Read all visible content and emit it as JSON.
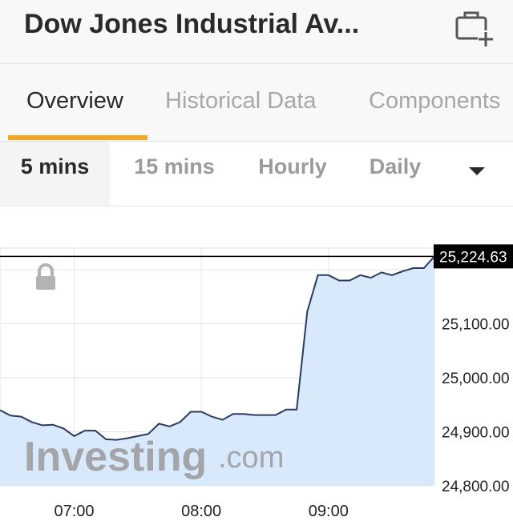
{
  "header": {
    "title": "Dow Jones Industrial Av...",
    "portfolio_icon": "briefcase-plus-icon"
  },
  "tabs": [
    {
      "label": "Overview",
      "active": true
    },
    {
      "label": "Historical Data",
      "active": false
    },
    {
      "label": "Components",
      "active": false
    }
  ],
  "intervals": [
    {
      "label": "5 mins",
      "active": true
    },
    {
      "label": "15 mins",
      "active": false
    },
    {
      "label": "Hourly",
      "active": false
    },
    {
      "label": "Daily",
      "active": false
    }
  ],
  "interval_dropdown_icon": "caret-down-icon",
  "colors": {
    "accent": "#f5a623",
    "line": "#2b3a5e",
    "area_fill": "#d8e9fb",
    "last_price_bg": "#000000"
  },
  "chart": {
    "watermark_brand": "Investing",
    "watermark_domain": ".com",
    "lock_icon": "lock-icon",
    "last_price_label": "25,224.63"
  },
  "chart_data": {
    "type": "area",
    "x_ticks": [
      "07:00",
      "08:00",
      "09:00"
    ],
    "y_ticks": [
      "25,100.00",
      "25,000.00",
      "24,900.00",
      "24,800.00"
    ],
    "ylim": [
      24800,
      25240
    ],
    "last_value": 25224.63,
    "grid": true,
    "x": [
      "06:25",
      "06:30",
      "06:35",
      "06:40",
      "06:45",
      "06:50",
      "06:55",
      "07:00",
      "07:05",
      "07:10",
      "07:15",
      "07:20",
      "07:25",
      "07:30",
      "07:35",
      "07:40",
      "07:45",
      "07:50",
      "07:55",
      "08:00",
      "08:05",
      "08:10",
      "08:15",
      "08:20",
      "08:25",
      "08:30",
      "08:35",
      "08:40",
      "08:45",
      "08:50",
      "08:55",
      "09:00",
      "09:05",
      "09:10",
      "09:15",
      "09:20",
      "09:25",
      "09:30",
      "09:35",
      "09:40",
      "09:45",
      "09:50"
    ],
    "values": [
      24940,
      24930,
      24928,
      24918,
      24912,
      24913,
      24906,
      24892,
      24902,
      24902,
      24886,
      24885,
      24888,
      24892,
      24896,
      24915,
      24910,
      24918,
      24937,
      24937,
      24928,
      24922,
      24933,
      24933,
      24931,
      24931,
      24931,
      24941,
      24941,
      25123,
      25190,
      25190,
      25180,
      25180,
      25190,
      25185,
      25195,
      25190,
      25197,
      25203,
      25203,
      25224.63
    ]
  }
}
